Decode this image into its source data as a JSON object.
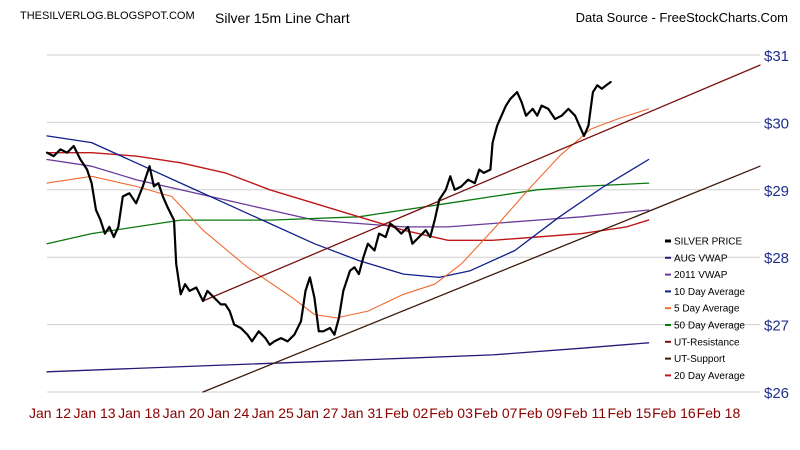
{
  "header": {
    "left": "THESILVERLOG.BLOGSPOT.COM",
    "center": "Silver 15m Line Chart",
    "right": "Data Source - FreeStockCharts.Com"
  },
  "chart_data": {
    "type": "line",
    "title": "Silver 15m Line Chart",
    "xlabel": "",
    "ylabel": "",
    "grid": true,
    "legend_position": "right",
    "ylim": [
      26,
      31
    ],
    "xlim": [
      0,
      16
    ],
    "y_ticks": [
      "$26",
      "$27",
      "$28",
      "$29",
      "$30",
      "$31"
    ],
    "x_ticks": [
      "Jan 12",
      "Jan 13",
      "Jan 18",
      "Jan 20",
      "Jan 24",
      "Jan 25",
      "Jan 27",
      "Jan 31",
      "Feb 02",
      "Feb 03",
      "Feb 07",
      "Feb 09",
      "Feb 11",
      "Feb 15",
      "Feb 16",
      "Feb 18"
    ],
    "colors": {
      "silver_price": "#000000",
      "aug_vwap": "#2b1878",
      "vwap_2011": "#6a3a9a",
      "day10": "#10208a",
      "day5": "#f06a30",
      "day50": "#0a7a10",
      "ut_resistance": "#7a1010",
      "ut_support": "#3a1a0a",
      "day20": "#c01818"
    },
    "series": [
      {
        "name": "SILVER PRICE",
        "key": "silver_price",
        "width": 2.2,
        "points": [
          [
            0,
            29.55
          ],
          [
            0.15,
            29.5
          ],
          [
            0.3,
            29.6
          ],
          [
            0.45,
            29.55
          ],
          [
            0.6,
            29.65
          ],
          [
            0.75,
            29.45
          ],
          [
            0.9,
            29.3
          ],
          [
            1.0,
            29.1
          ],
          [
            1.1,
            28.7
          ],
          [
            1.2,
            28.55
          ],
          [
            1.3,
            28.35
          ],
          [
            1.4,
            28.45
          ],
          [
            1.5,
            28.3
          ],
          [
            1.6,
            28.45
          ],
          [
            1.7,
            28.9
          ],
          [
            1.85,
            28.95
          ],
          [
            2.0,
            28.8
          ],
          [
            2.15,
            29.05
          ],
          [
            2.3,
            29.35
          ],
          [
            2.4,
            29.05
          ],
          [
            2.5,
            29.1
          ],
          [
            2.6,
            28.9
          ],
          [
            2.7,
            28.75
          ],
          [
            2.85,
            28.55
          ],
          [
            2.9,
            27.9
          ],
          [
            3.0,
            27.45
          ],
          [
            3.1,
            27.6
          ],
          [
            3.2,
            27.5
          ],
          [
            3.35,
            27.55
          ],
          [
            3.5,
            27.35
          ],
          [
            3.6,
            27.5
          ],
          [
            3.75,
            27.4
          ],
          [
            3.9,
            27.3
          ],
          [
            4.0,
            27.3
          ],
          [
            4.1,
            27.2
          ],
          [
            4.2,
            27.0
          ],
          [
            4.35,
            26.95
          ],
          [
            4.5,
            26.85
          ],
          [
            4.6,
            26.75
          ],
          [
            4.75,
            26.9
          ],
          [
            4.9,
            26.8
          ],
          [
            5.0,
            26.7
          ],
          [
            5.1,
            26.75
          ],
          [
            5.25,
            26.8
          ],
          [
            5.4,
            26.75
          ],
          [
            5.55,
            26.85
          ],
          [
            5.7,
            27.05
          ],
          [
            5.8,
            27.5
          ],
          [
            5.9,
            27.7
          ],
          [
            6.0,
            27.4
          ],
          [
            6.1,
            26.9
          ],
          [
            6.2,
            26.9
          ],
          [
            6.35,
            26.95
          ],
          [
            6.45,
            26.85
          ],
          [
            6.55,
            27.1
          ],
          [
            6.65,
            27.5
          ],
          [
            6.8,
            27.8
          ],
          [
            6.9,
            27.85
          ],
          [
            7.0,
            27.75
          ],
          [
            7.1,
            28.0
          ],
          [
            7.2,
            28.2
          ],
          [
            7.35,
            28.1
          ],
          [
            7.45,
            28.35
          ],
          [
            7.6,
            28.3
          ],
          [
            7.7,
            28.5
          ],
          [
            7.8,
            28.45
          ],
          [
            7.95,
            28.35
          ],
          [
            8.1,
            28.45
          ],
          [
            8.2,
            28.2
          ],
          [
            8.35,
            28.3
          ],
          [
            8.5,
            28.4
          ],
          [
            8.6,
            28.3
          ],
          [
            8.7,
            28.55
          ],
          [
            8.8,
            28.85
          ],
          [
            8.95,
            29.0
          ],
          [
            9.05,
            29.2
          ],
          [
            9.15,
            29.0
          ],
          [
            9.3,
            29.05
          ],
          [
            9.45,
            29.15
          ],
          [
            9.6,
            29.1
          ],
          [
            9.7,
            29.3
          ],
          [
            9.8,
            29.25
          ],
          [
            9.95,
            29.3
          ],
          [
            10.0,
            29.7
          ],
          [
            10.1,
            29.95
          ],
          [
            10.2,
            30.1
          ],
          [
            10.3,
            30.25
          ],
          [
            10.4,
            30.35
          ],
          [
            10.55,
            30.45
          ],
          [
            10.65,
            30.3
          ],
          [
            10.75,
            30.1
          ],
          [
            10.9,
            30.2
          ],
          [
            11.0,
            30.1
          ],
          [
            11.1,
            30.25
          ],
          [
            11.25,
            30.2
          ],
          [
            11.4,
            30.05
          ],
          [
            11.55,
            30.1
          ],
          [
            11.7,
            30.2
          ],
          [
            11.85,
            30.1
          ],
          [
            11.95,
            29.95
          ],
          [
            12.05,
            29.8
          ],
          [
            12.15,
            29.95
          ],
          [
            12.25,
            30.45
          ],
          [
            12.35,
            30.55
          ],
          [
            12.45,
            30.5
          ],
          [
            12.55,
            30.55
          ],
          [
            12.65,
            30.6
          ]
        ]
      },
      {
        "name": "AUG VWAP",
        "key": "aug_vwap",
        "width": 1.3,
        "points": [
          [
            0,
            26.3
          ],
          [
            2,
            26.35
          ],
          [
            4,
            26.4
          ],
          [
            6,
            26.45
          ],
          [
            8,
            26.5
          ],
          [
            10,
            26.55
          ],
          [
            12,
            26.65
          ],
          [
            13.5,
            26.73
          ]
        ]
      },
      {
        "name": "2011 VWAP",
        "key": "vwap_2011",
        "width": 1.3,
        "points": [
          [
            0,
            29.45
          ],
          [
            1,
            29.35
          ],
          [
            2,
            29.15
          ],
          [
            3,
            29.0
          ],
          [
            4,
            28.85
          ],
          [
            5,
            28.7
          ],
          [
            6,
            28.55
          ],
          [
            7,
            28.5
          ],
          [
            8,
            28.45
          ],
          [
            9,
            28.45
          ],
          [
            10,
            28.5
          ],
          [
            11,
            28.55
          ],
          [
            12,
            28.6
          ],
          [
            13.5,
            28.7
          ]
        ]
      },
      {
        "name": "10 Day Average",
        "key": "day10",
        "width": 1.3,
        "points": [
          [
            0,
            29.8
          ],
          [
            1,
            29.7
          ],
          [
            2,
            29.4
          ],
          [
            3,
            29.1
          ],
          [
            4,
            28.8
          ],
          [
            5,
            28.5
          ],
          [
            6,
            28.2
          ],
          [
            7,
            27.95
          ],
          [
            8,
            27.75
          ],
          [
            8.8,
            27.7
          ],
          [
            9.5,
            27.8
          ],
          [
            10.5,
            28.1
          ],
          [
            11.5,
            28.6
          ],
          [
            12.5,
            29.05
          ],
          [
            13.5,
            29.45
          ]
        ]
      },
      {
        "name": "5 Day Average",
        "key": "day5",
        "width": 1.1,
        "points": [
          [
            0,
            29.1
          ],
          [
            1,
            29.2
          ],
          [
            2,
            29.05
          ],
          [
            2.8,
            28.9
          ],
          [
            3.5,
            28.4
          ],
          [
            4.5,
            27.85
          ],
          [
            5.5,
            27.4
          ],
          [
            6.0,
            27.15
          ],
          [
            6.5,
            27.1
          ],
          [
            7.2,
            27.2
          ],
          [
            8,
            27.45
          ],
          [
            8.7,
            27.6
          ],
          [
            9.3,
            27.9
          ],
          [
            10,
            28.4
          ],
          [
            10.8,
            29.0
          ],
          [
            11.5,
            29.5
          ],
          [
            12.2,
            29.9
          ],
          [
            12.8,
            30.05
          ],
          [
            13.5,
            30.2
          ]
        ]
      },
      {
        "name": "50 Day Average",
        "key": "day50",
        "width": 1.3,
        "points": [
          [
            0,
            28.2
          ],
          [
            1,
            28.35
          ],
          [
            2,
            28.45
          ],
          [
            3,
            28.55
          ],
          [
            5,
            28.55
          ],
          [
            7,
            28.6
          ],
          [
            8,
            28.7
          ],
          [
            9,
            28.8
          ],
          [
            10,
            28.9
          ],
          [
            11,
            29.0
          ],
          [
            12,
            29.05
          ],
          [
            13.5,
            29.1
          ]
        ]
      },
      {
        "name": "UT-Resistance",
        "key": "ut_resistance",
        "width": 1.3,
        "points": [
          [
            3.5,
            27.35
          ],
          [
            16,
            30.85
          ]
        ]
      },
      {
        "name": "UT-Support",
        "key": "ut_support",
        "width": 1.3,
        "points": [
          [
            3.5,
            26.0
          ],
          [
            16,
            29.35
          ]
        ]
      },
      {
        "name": "20 Day Average",
        "key": "day20",
        "width": 1.4,
        "points": [
          [
            0,
            29.55
          ],
          [
            1,
            29.55
          ],
          [
            2,
            29.5
          ],
          [
            3,
            29.4
          ],
          [
            4,
            29.25
          ],
          [
            5,
            29.0
          ],
          [
            6,
            28.8
          ],
          [
            7,
            28.6
          ],
          [
            8,
            28.4
          ],
          [
            9,
            28.25
          ],
          [
            10,
            28.25
          ],
          [
            11,
            28.3
          ],
          [
            12,
            28.35
          ],
          [
            13,
            28.45
          ],
          [
            13.5,
            28.55
          ]
        ]
      }
    ]
  }
}
